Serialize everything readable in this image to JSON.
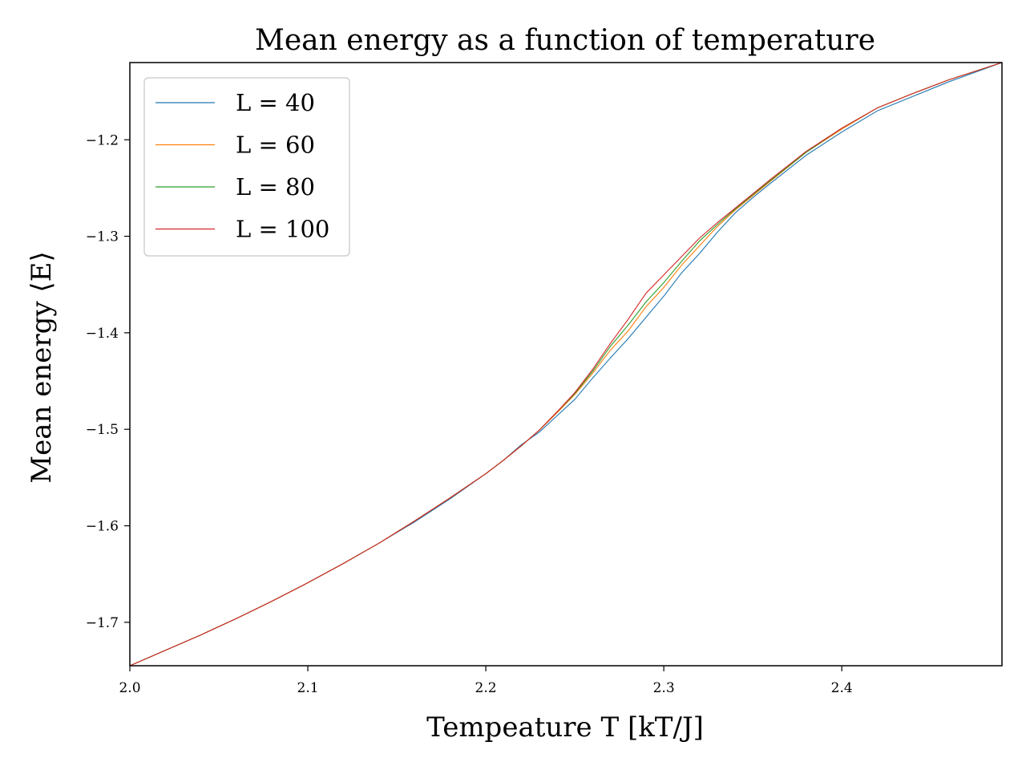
{
  "chart_data": {
    "type": "line",
    "title": "Mean energy as a function of temperature",
    "xlabel": "Tempeature T [kT/J]",
    "ylabel": "Mean energy ⟨E⟩",
    "xlim": [
      2.0,
      2.49
    ],
    "ylim": [
      -1.745,
      -1.12
    ],
    "xticks": [
      2.0,
      2.1,
      2.2,
      2.3,
      2.4
    ],
    "xtick_labels": [
      "2.0",
      "2.1",
      "2.2",
      "2.3",
      "2.4"
    ],
    "yticks": [
      -1.2,
      -1.3,
      -1.4,
      -1.5,
      -1.6,
      -1.7
    ],
    "ytick_labels": [
      "−1.2",
      "−1.3",
      "−1.4",
      "−1.5",
      "−1.6",
      "−1.7"
    ],
    "grid": false,
    "legend_position": "top-left",
    "series": [
      {
        "name": "L = 40",
        "color": "#1f77b4",
        "x": [
          2.0,
          2.02,
          2.04,
          2.06,
          2.08,
          2.1,
          2.12,
          2.14,
          2.16,
          2.18,
          2.2,
          2.21,
          2.22,
          2.23,
          2.24,
          2.25,
          2.26,
          2.27,
          2.28,
          2.29,
          2.3,
          2.31,
          2.32,
          2.33,
          2.34,
          2.35,
          2.36,
          2.38,
          2.4,
          2.42,
          2.44,
          2.46,
          2.49
        ],
        "y": [
          -1.745,
          -1.729,
          -1.713,
          -1.696,
          -1.678,
          -1.659,
          -1.639,
          -1.618,
          -1.596,
          -1.572,
          -1.546,
          -1.532,
          -1.516,
          -1.503,
          -1.486,
          -1.469,
          -1.447,
          -1.426,
          -1.406,
          -1.384,
          -1.362,
          -1.338,
          -1.318,
          -1.296,
          -1.276,
          -1.26,
          -1.245,
          -1.216,
          -1.192,
          -1.17,
          -1.155,
          -1.14,
          -1.12
        ]
      },
      {
        "name": "L = 60",
        "color": "#ff7f0e",
        "x": [
          2.0,
          2.02,
          2.04,
          2.06,
          2.08,
          2.1,
          2.12,
          2.14,
          2.16,
          2.18,
          2.2,
          2.21,
          2.22,
          2.23,
          2.24,
          2.25,
          2.26,
          2.27,
          2.28,
          2.29,
          2.3,
          2.31,
          2.32,
          2.33,
          2.34,
          2.35,
          2.36,
          2.38,
          2.4,
          2.42,
          2.44,
          2.46,
          2.49
        ],
        "y": [
          -1.745,
          -1.729,
          -1.713,
          -1.696,
          -1.678,
          -1.659,
          -1.639,
          -1.618,
          -1.595,
          -1.571,
          -1.546,
          -1.532,
          -1.517,
          -1.501,
          -1.483,
          -1.464,
          -1.442,
          -1.418,
          -1.398,
          -1.373,
          -1.353,
          -1.33,
          -1.31,
          -1.29,
          -1.273,
          -1.258,
          -1.243,
          -1.213,
          -1.189,
          -1.167,
          -1.152,
          -1.138,
          -1.12
        ]
      },
      {
        "name": "L = 80",
        "color": "#2ca02c",
        "x": [
          2.0,
          2.02,
          2.04,
          2.06,
          2.08,
          2.1,
          2.12,
          2.14,
          2.16,
          2.18,
          2.2,
          2.21,
          2.22,
          2.23,
          2.24,
          2.25,
          2.26,
          2.27,
          2.28,
          2.29,
          2.3,
          2.31,
          2.32,
          2.33,
          2.34,
          2.35,
          2.36,
          2.38,
          2.4,
          2.42,
          2.44,
          2.46,
          2.49
        ],
        "y": [
          -1.745,
          -1.729,
          -1.713,
          -1.696,
          -1.678,
          -1.659,
          -1.639,
          -1.618,
          -1.595,
          -1.571,
          -1.546,
          -1.532,
          -1.517,
          -1.501,
          -1.482,
          -1.463,
          -1.44,
          -1.414,
          -1.392,
          -1.368,
          -1.348,
          -1.326,
          -1.305,
          -1.288,
          -1.272,
          -1.257,
          -1.242,
          -1.213,
          -1.188,
          -1.167,
          -1.152,
          -1.138,
          -1.12
        ]
      },
      {
        "name": "L = 100",
        "color": "#d62728",
        "x": [
          2.0,
          2.02,
          2.04,
          2.06,
          2.08,
          2.1,
          2.12,
          2.14,
          2.16,
          2.18,
          2.2,
          2.21,
          2.22,
          2.23,
          2.24,
          2.25,
          2.26,
          2.27,
          2.28,
          2.29,
          2.3,
          2.31,
          2.32,
          2.33,
          2.34,
          2.35,
          2.36,
          2.38,
          2.4,
          2.42,
          2.44,
          2.46,
          2.49
        ],
        "y": [
          -1.745,
          -1.729,
          -1.713,
          -1.696,
          -1.678,
          -1.659,
          -1.639,
          -1.618,
          -1.595,
          -1.571,
          -1.546,
          -1.532,
          -1.517,
          -1.501,
          -1.482,
          -1.462,
          -1.438,
          -1.411,
          -1.386,
          -1.359,
          -1.34,
          -1.321,
          -1.302,
          -1.286,
          -1.271,
          -1.256,
          -1.241,
          -1.212,
          -1.188,
          -1.167,
          -1.152,
          -1.138,
          -1.12
        ]
      }
    ]
  }
}
